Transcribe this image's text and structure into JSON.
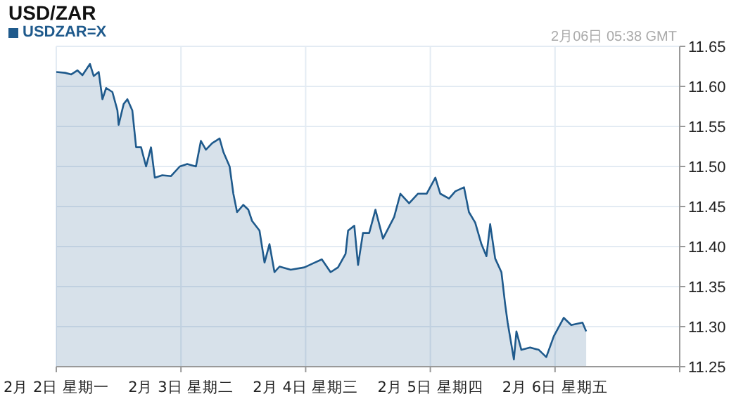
{
  "chart_data": {
    "type": "area",
    "title": "USD/ZAR",
    "annotations": [
      "2月06日 05:38 GMT"
    ],
    "legend": "top left",
    "grid": true,
    "xlim": [
      "--02-02",
      "--02-07"
    ],
    "xticks": [
      {
        "value": "--02-02",
        "label": "2月  2日  星期一"
      },
      {
        "value": "--02-03",
        "label": "2月  3日  星期二"
      },
      {
        "value": "--02-04",
        "label": "2月  4日  星期三"
      },
      {
        "value": "--02-05",
        "label": "2月  5日  星期四"
      },
      {
        "value": "--02-06",
        "label": "2月  6日  星期五"
      },
      {
        "value": "--02-07",
        "label": null
      }
    ],
    "ylim": [
      11.25,
      11.65
    ],
    "yticks": [
      {
        "value": 11.25,
        "label": "11.25"
      },
      {
        "value": 11.3,
        "label": "11.30"
      },
      {
        "value": 11.35,
        "label": "11.35"
      },
      {
        "value": 11.4,
        "label": "11.40"
      },
      {
        "value": 11.45,
        "label": "11.45"
      },
      {
        "value": 11.5,
        "label": "11.50"
      },
      {
        "value": 11.55,
        "label": "11.55"
      },
      {
        "value": 11.6,
        "label": "11.60"
      },
      {
        "value": 11.65,
        "label": "11.65"
      }
    ],
    "series": [
      {
        "name": "USDZAR=X",
        "color": "#1f5a8c",
        "x": [
          "--02-02T00:00",
          "--02-02T01:41",
          "--02-02T02:53",
          "--02-02T04:05",
          "--02-02T05:02",
          "--02-02T06:29",
          "--02-02T07:12",
          "--02-02T08:10",
          "--02-02T08:53",
          "--02-02T09:36",
          "--02-02T10:48",
          "--02-02T11:46",
          "--02-02T12:00",
          "--02-02T12:58",
          "--02-02T13:41",
          "--02-02T14:38",
          "--02-02T15:22",
          "--02-02T16:19",
          "--02-02T17:17",
          "--02-02T18:14",
          "--02-02T18:58",
          "--02-02T20:24",
          "--02-02T22:05",
          "--02-02T23:46",
          "--02-03T01:12",
          "--02-03T02:53",
          "--02-03T03:50",
          "--02-03T04:48",
          "--02-03T06:00",
          "--02-03T07:26",
          "--02-03T08:10",
          "--02-03T09:22",
          "--02-03T10:05",
          "--02-03T10:48",
          "--02-03T12:00",
          "--02-03T12:58",
          "--02-03T13:41",
          "--02-03T15:07",
          "--02-03T16:05",
          "--02-03T17:02",
          "--02-03T18:00",
          "--02-03T18:58",
          "--02-03T21:07",
          "--02-03T23:46",
          "--02-04T01:26",
          "--02-04T03:07",
          "--02-04T04:48",
          "--02-04T06:14",
          "--02-04T07:41",
          "--02-04T08:10",
          "--02-04T09:22",
          "--02-04T10:05",
          "--02-04T11:02",
          "--02-04T12:14",
          "--02-04T13:26",
          "--02-04T14:53",
          "--02-04T17:02",
          "--02-04T18:14",
          "--02-04T19:55",
          "--02-04T21:36",
          "--02-04T23:17",
          "--02-05T00:58",
          "--02-05T01:55",
          "--02-05T03:36",
          "--02-05T04:48",
          "--02-05T06:29",
          "--02-05T07:26",
          "--02-05T08:38",
          "--02-05T09:50",
          "--02-05T10:48",
          "--02-05T11:31",
          "--02-05T12:29",
          "--02-05T13:41",
          "--02-05T14:24",
          "--02-05T14:53",
          "--02-05T16:05",
          "--02-05T16:34",
          "--02-05T17:31",
          "--02-05T19:12",
          "--02-05T20:53",
          "--02-05T22:19",
          "--02-05T23:46",
          "--02-06T01:41",
          "--02-06T03:07",
          "--02-06T05:17",
          "--02-06T06:00"
        ],
        "values": [
          11.618,
          11.617,
          11.615,
          11.62,
          11.614,
          11.628,
          11.613,
          11.618,
          11.584,
          11.598,
          11.593,
          11.57,
          11.552,
          11.578,
          11.584,
          11.57,
          11.524,
          11.524,
          11.5,
          11.524,
          11.486,
          11.489,
          11.488,
          11.5,
          11.503,
          11.5,
          11.532,
          11.521,
          11.529,
          11.535,
          11.518,
          11.5,
          11.466,
          11.443,
          11.452,
          11.446,
          11.432,
          11.42,
          11.38,
          11.403,
          11.368,
          11.375,
          11.371,
          11.374,
          11.379,
          11.384,
          11.368,
          11.374,
          11.391,
          11.42,
          11.426,
          11.377,
          11.417,
          11.417,
          11.446,
          11.41,
          11.437,
          11.466,
          11.454,
          11.466,
          11.466,
          11.486,
          11.466,
          11.46,
          11.469,
          11.474,
          11.443,
          11.43,
          11.403,
          11.388,
          11.428,
          11.385,
          11.368,
          11.328,
          11.305,
          11.259,
          11.294,
          11.271,
          11.274,
          11.271,
          11.262,
          11.288,
          11.311,
          11.302,
          11.305,
          11.294
        ]
      }
    ]
  }
}
